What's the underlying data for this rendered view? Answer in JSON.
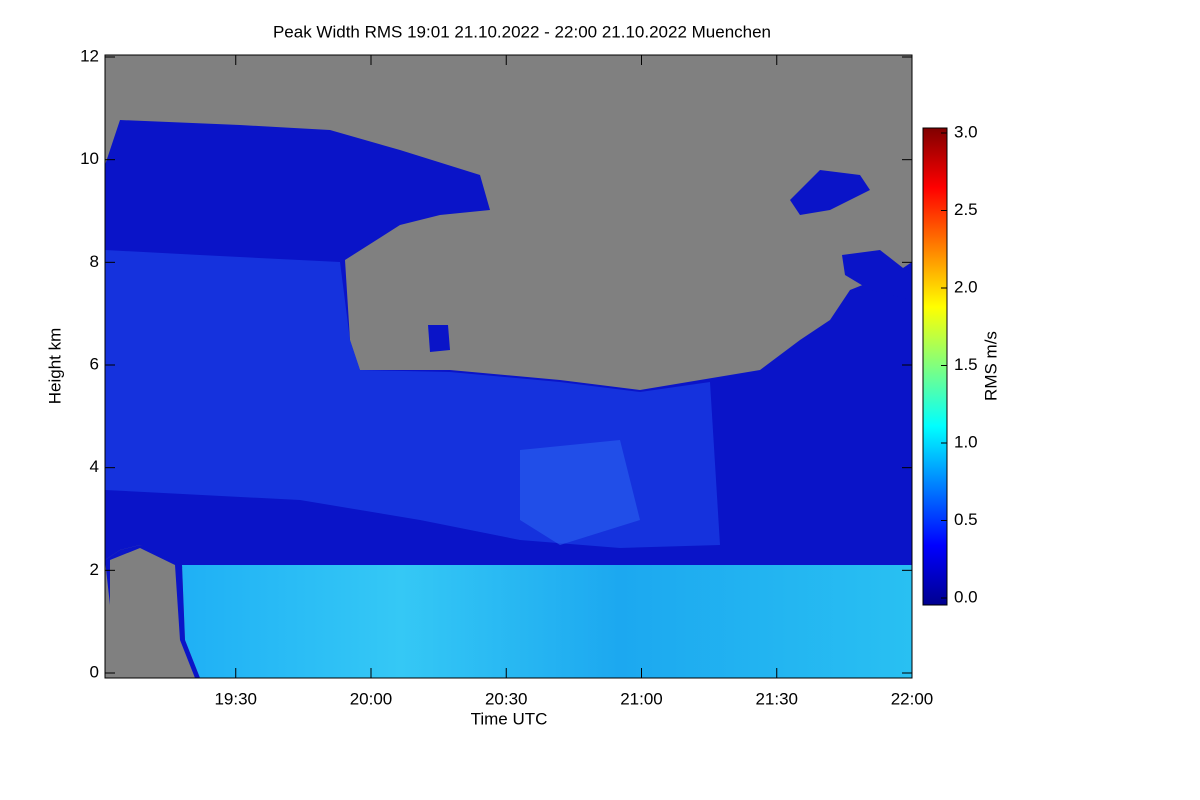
{
  "chart_data": {
    "type": "heatmap",
    "title": "Peak Width RMS   19:01 21.10.2022 - 22:00 21.10.2022 Muenchen",
    "xlabel": "Time UTC",
    "ylabel": "Height km",
    "xlim": [
      1141,
      1320
    ],
    "xticks": [
      {
        "value": 1170,
        "label": "19:30"
      },
      {
        "value": 1200,
        "label": "20:00"
      },
      {
        "value": 1230,
        "label": "20:30"
      },
      {
        "value": 1260,
        "label": "21:00"
      },
      {
        "value": 1290,
        "label": "21:30"
      },
      {
        "value": 1320,
        "label": "22:00"
      }
    ],
    "ylim": [
      0,
      12
    ],
    "yticks": [
      0,
      2,
      4,
      6,
      8,
      10,
      12
    ],
    "colorbar": {
      "label": "RMS m/s",
      "lim": [
        0,
        3
      ],
      "ticks": [
        {
          "value": 0,
          "label": "0.0"
        },
        {
          "value": 0.5,
          "label": "0.5"
        },
        {
          "value": 1,
          "label": "1.0"
        },
        {
          "value": 1.5,
          "label": "1.5"
        },
        {
          "value": 2,
          "label": "2.0"
        },
        {
          "value": 2.5,
          "label": "2.5"
        },
        {
          "value": 3,
          "label": "3.0"
        }
      ]
    }
  }
}
